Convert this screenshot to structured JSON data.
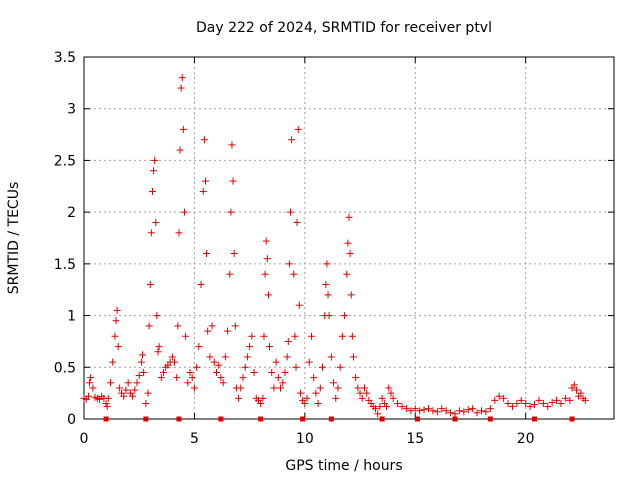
{
  "chart_data": {
    "type": "scatter",
    "title": "Day 222 of 2024, SRMTID for receiver ptvl",
    "xlabel": "GPS time / hours",
    "ylabel": "SRMTID / TECUs",
    "xlim": [
      0,
      24
    ],
    "ylim": [
      0,
      3.5
    ],
    "x_ticks": [
      "0",
      "5",
      "10",
      "15",
      "20"
    ],
    "y_ticks": [
      "0",
      "0.5",
      "1",
      "1.5",
      "2",
      "2.5",
      "3",
      "3.5"
    ],
    "grid": true,
    "marker": "plus",
    "series": [
      {
        "name": "SRMTID",
        "color": "#e00000",
        "points": [
          [
            0.0,
            0.2
          ],
          [
            0.1,
            0.19
          ],
          [
            0.2,
            0.22
          ],
          [
            0.25,
            0.35
          ],
          [
            0.3,
            0.4
          ],
          [
            0.4,
            0.3
          ],
          [
            0.5,
            0.21
          ],
          [
            0.6,
            0.2
          ],
          [
            0.7,
            0.19
          ],
          [
            0.8,
            0.22
          ],
          [
            0.9,
            0.2
          ],
          [
            1.0,
            0.15
          ],
          [
            1.05,
            0.12
          ],
          [
            1.1,
            0.2
          ],
          [
            1.2,
            0.35
          ],
          [
            1.3,
            0.55
          ],
          [
            1.4,
            0.8
          ],
          [
            1.45,
            0.95
          ],
          [
            1.5,
            1.05
          ],
          [
            1.55,
            0.7
          ],
          [
            1.6,
            0.3
          ],
          [
            1.7,
            0.25
          ],
          [
            1.8,
            0.22
          ],
          [
            1.9,
            0.28
          ],
          [
            2.0,
            0.35
          ],
          [
            2.1,
            0.25
          ],
          [
            2.2,
            0.22
          ],
          [
            2.3,
            0.28
          ],
          [
            2.4,
            0.35
          ],
          [
            2.5,
            0.42
          ],
          [
            2.6,
            0.55
          ],
          [
            2.65,
            0.62
          ],
          [
            2.7,
            0.45
          ],
          [
            2.8,
            0.15
          ],
          [
            2.9,
            0.25
          ],
          [
            2.95,
            0.9
          ],
          [
            3.0,
            1.3
          ],
          [
            3.05,
            1.8
          ],
          [
            3.1,
            2.2
          ],
          [
            3.15,
            2.4
          ],
          [
            3.2,
            2.5
          ],
          [
            3.25,
            1.9
          ],
          [
            3.3,
            1.0
          ],
          [
            3.35,
            0.65
          ],
          [
            3.4,
            0.7
          ],
          [
            3.5,
            0.4
          ],
          [
            3.6,
            0.45
          ],
          [
            3.7,
            0.5
          ],
          [
            3.8,
            0.52
          ],
          [
            3.9,
            0.55
          ],
          [
            4.0,
            0.6
          ],
          [
            4.1,
            0.55
          ],
          [
            4.2,
            0.4
          ],
          [
            4.25,
            0.9
          ],
          [
            4.3,
            1.8
          ],
          [
            4.35,
            2.6
          ],
          [
            4.4,
            3.2
          ],
          [
            4.45,
            3.3
          ],
          [
            4.5,
            2.8
          ],
          [
            4.55,
            2.0
          ],
          [
            4.6,
            0.8
          ],
          [
            4.7,
            0.35
          ],
          [
            4.8,
            0.45
          ],
          [
            4.9,
            0.4
          ],
          [
            5.0,
            0.3
          ],
          [
            5.1,
            0.5
          ],
          [
            5.2,
            0.7
          ],
          [
            5.3,
            1.3
          ],
          [
            5.4,
            2.2
          ],
          [
            5.45,
            2.7
          ],
          [
            5.5,
            2.3
          ],
          [
            5.55,
            1.6
          ],
          [
            5.6,
            0.85
          ],
          [
            5.7,
            0.6
          ],
          [
            5.8,
            0.9
          ],
          [
            5.9,
            0.55
          ],
          [
            6.0,
            0.45
          ],
          [
            6.1,
            0.52
          ],
          [
            6.2,
            0.4
          ],
          [
            6.3,
            0.35
          ],
          [
            6.4,
            0.6
          ],
          [
            6.5,
            0.85
          ],
          [
            6.6,
            1.4
          ],
          [
            6.65,
            2.0
          ],
          [
            6.7,
            2.65
          ],
          [
            6.75,
            2.3
          ],
          [
            6.8,
            1.6
          ],
          [
            6.85,
            0.9
          ],
          [
            6.9,
            0.3
          ],
          [
            7.0,
            0.2
          ],
          [
            7.1,
            0.3
          ],
          [
            7.2,
            0.4
          ],
          [
            7.3,
            0.5
          ],
          [
            7.4,
            0.6
          ],
          [
            7.5,
            0.7
          ],
          [
            7.6,
            0.8
          ],
          [
            7.7,
            0.45
          ],
          [
            7.8,
            0.2
          ],
          [
            7.9,
            0.18
          ],
          [
            8.0,
            0.15
          ],
          [
            8.1,
            0.2
          ],
          [
            8.15,
            0.8
          ],
          [
            8.2,
            1.4
          ],
          [
            8.25,
            1.72
          ],
          [
            8.3,
            1.55
          ],
          [
            8.35,
            1.2
          ],
          [
            8.4,
            0.7
          ],
          [
            8.5,
            0.45
          ],
          [
            8.6,
            0.3
          ],
          [
            8.7,
            0.55
          ],
          [
            8.8,
            0.4
          ],
          [
            8.9,
            0.3
          ],
          [
            9.0,
            0.35
          ],
          [
            9.1,
            0.45
          ],
          [
            9.2,
            0.6
          ],
          [
            9.25,
            0.75
          ],
          [
            9.3,
            1.5
          ],
          [
            9.35,
            2.0
          ],
          [
            9.4,
            2.7
          ],
          [
            9.5,
            1.4
          ],
          [
            9.55,
            0.8
          ],
          [
            9.6,
            0.5
          ],
          [
            9.65,
            1.9
          ],
          [
            9.7,
            2.8
          ],
          [
            9.75,
            1.1
          ],
          [
            9.8,
            0.25
          ],
          [
            9.9,
            0.18
          ],
          [
            10.0,
            0.15
          ],
          [
            10.1,
            0.2
          ],
          [
            10.2,
            0.55
          ],
          [
            10.3,
            0.8
          ],
          [
            10.4,
            0.4
          ],
          [
            10.5,
            0.25
          ],
          [
            10.6,
            0.15
          ],
          [
            10.7,
            0.3
          ],
          [
            10.8,
            0.5
          ],
          [
            10.9,
            1.0
          ],
          [
            10.95,
            1.3
          ],
          [
            11.0,
            1.5
          ],
          [
            11.05,
            1.2
          ],
          [
            11.1,
            1.0
          ],
          [
            11.2,
            0.6
          ],
          [
            11.3,
            0.35
          ],
          [
            11.4,
            0.2
          ],
          [
            11.5,
            0.3
          ],
          [
            11.6,
            0.5
          ],
          [
            11.7,
            0.8
          ],
          [
            11.8,
            1.0
          ],
          [
            11.9,
            1.4
          ],
          [
            11.95,
            1.7
          ],
          [
            12.0,
            1.95
          ],
          [
            12.05,
            1.6
          ],
          [
            12.1,
            1.2
          ],
          [
            12.15,
            0.8
          ],
          [
            12.2,
            0.6
          ],
          [
            12.3,
            0.4
          ],
          [
            12.4,
            0.3
          ],
          [
            12.5,
            0.25
          ],
          [
            12.6,
            0.2
          ],
          [
            12.7,
            0.3
          ],
          [
            12.8,
            0.25
          ],
          [
            12.9,
            0.18
          ],
          [
            13.0,
            0.15
          ],
          [
            13.1,
            0.12
          ],
          [
            13.2,
            0.1
          ],
          [
            13.3,
            0.05
          ],
          [
            13.4,
            0.12
          ],
          [
            13.5,
            0.2
          ],
          [
            13.6,
            0.15
          ],
          [
            13.7,
            0.12
          ],
          [
            13.8,
            0.3
          ],
          [
            13.9,
            0.25
          ],
          [
            14.0,
            0.2
          ],
          [
            14.2,
            0.15
          ],
          [
            14.4,
            0.12
          ],
          [
            14.6,
            0.1
          ],
          [
            14.8,
            0.08
          ],
          [
            15.0,
            0.1
          ],
          [
            15.2,
            0.08
          ],
          [
            15.4,
            0.09
          ],
          [
            15.6,
            0.1
          ],
          [
            15.8,
            0.08
          ],
          [
            16.0,
            0.07
          ],
          [
            16.2,
            0.1
          ],
          [
            16.4,
            0.08
          ],
          [
            16.6,
            0.06
          ],
          [
            16.8,
            0.05
          ],
          [
            17.0,
            0.08
          ],
          [
            17.2,
            0.07
          ],
          [
            17.4,
            0.09
          ],
          [
            17.6,
            0.1
          ],
          [
            17.8,
            0.06
          ],
          [
            18.0,
            0.08
          ],
          [
            18.2,
            0.07
          ],
          [
            18.4,
            0.1
          ],
          [
            18.6,
            0.18
          ],
          [
            18.8,
            0.22
          ],
          [
            19.0,
            0.2
          ],
          [
            19.2,
            0.15
          ],
          [
            19.4,
            0.12
          ],
          [
            19.6,
            0.15
          ],
          [
            19.8,
            0.18
          ],
          [
            20.0,
            0.15
          ],
          [
            20.2,
            0.12
          ],
          [
            20.4,
            0.14
          ],
          [
            20.6,
            0.18
          ],
          [
            20.8,
            0.15
          ],
          [
            21.0,
            0.12
          ],
          [
            21.2,
            0.16
          ],
          [
            21.4,
            0.18
          ],
          [
            21.6,
            0.15
          ],
          [
            21.8,
            0.2
          ],
          [
            22.0,
            0.18
          ],
          [
            22.1,
            0.3
          ],
          [
            22.2,
            0.33
          ],
          [
            22.3,
            0.28
          ],
          [
            22.4,
            0.22
          ],
          [
            22.5,
            0.25
          ],
          [
            22.6,
            0.2
          ],
          [
            22.7,
            0.18
          ]
        ]
      }
    ],
    "axis_markers": [
      {
        "x": 1.0,
        "y": 0
      },
      {
        "x": 2.8,
        "y": 0
      },
      {
        "x": 4.3,
        "y": 0
      },
      {
        "x": 6.2,
        "y": 0
      },
      {
        "x": 8.0,
        "y": 0
      },
      {
        "x": 9.9,
        "y": 0
      },
      {
        "x": 11.2,
        "y": 0
      },
      {
        "x": 13.5,
        "y": 0
      },
      {
        "x": 15.1,
        "y": 0
      },
      {
        "x": 16.8,
        "y": 0
      },
      {
        "x": 18.4,
        "y": 0
      },
      {
        "x": 20.4,
        "y": 0
      },
      {
        "x": 22.1,
        "y": 0
      }
    ]
  }
}
